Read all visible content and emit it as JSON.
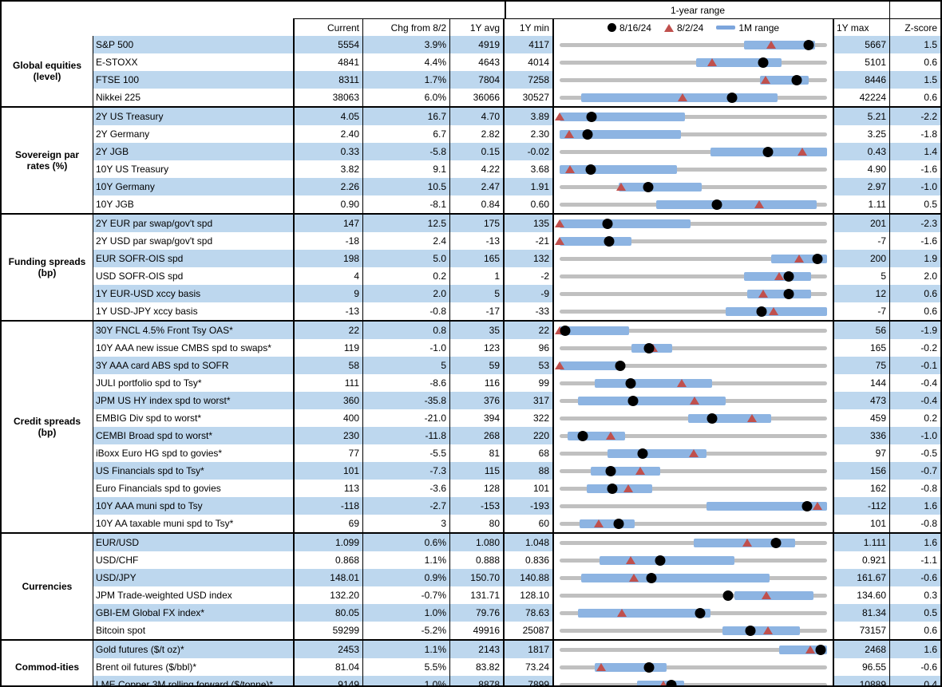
{
  "header": {
    "range_title": "1-year range",
    "col_current": "Current",
    "col_chg": "Chg from 8/2",
    "col_avg": "1Y avg",
    "col_min": "1Y min",
    "col_max": "1Y max",
    "col_z": "Z-score",
    "legend": [
      {
        "marker": "dot-icon",
        "label": "8/16/24"
      },
      {
        "marker": "triangle-icon",
        "label": "8/2/24"
      },
      {
        "marker": "bar-icon",
        "label": "1M range"
      }
    ]
  },
  "colors": {
    "stripe": "#BDD7EE",
    "range_bar": "#8DB4E2",
    "track": "#C0C0C0",
    "triangle": "#C0504D",
    "dot": "#000000"
  },
  "chart_data": {
    "type": "table",
    "description": "Market monitor: current levels vs 1-year range (dot = 8/16/24, triangle = 8/2/24, thick bar = 1M range); bar/dot/tri are fractions of the 1Y min-max span",
    "sections": [
      {
        "label": "Global equities (level)",
        "rows": [
          {
            "name": "S&P 500",
            "current": "5554",
            "chg": "3.9%",
            "avg": "4919",
            "min": "4117",
            "max": "5667",
            "z": "1.5",
            "bar": [
              0.69,
              0.955
            ],
            "dot": 0.93,
            "tri": 0.79
          },
          {
            "name": "E-STOXX",
            "current": "4841",
            "chg": "4.4%",
            "avg": "4643",
            "min": "4014",
            "max": "5101",
            "z": "0.6",
            "bar": [
              0.51,
              0.83
            ],
            "dot": 0.76,
            "tri": 0.57
          },
          {
            "name": "FTSE 100",
            "current": "8311",
            "chg": "1.7%",
            "avg": "7804",
            "min": "7258",
            "max": "8446",
            "z": "1.5",
            "bar": [
              0.75,
              0.93
            ],
            "dot": 0.886,
            "tri": 0.77
          },
          {
            "name": "Nikkei 225",
            "current": "38063",
            "chg": "6.0%",
            "avg": "36066",
            "min": "30527",
            "max": "42224",
            "z": "0.6",
            "bar": [
              0.08,
              0.815
            ],
            "dot": 0.645,
            "tri": 0.46
          }
        ]
      },
      {
        "label": "Sovereign par rates (%)",
        "rows": [
          {
            "name": "2Y US Treasury",
            "current": "4.05",
            "chg": "16.7",
            "avg": "4.70",
            "min": "3.89",
            "max": "5.21",
            "z": "-2.2",
            "bar": [
              0.0,
              0.47
            ],
            "dot": 0.12,
            "tri": 0.0
          },
          {
            "name": "2Y Germany",
            "current": "2.40",
            "chg": "6.7",
            "avg": "2.82",
            "min": "2.30",
            "max": "3.25",
            "z": "-1.8",
            "bar": [
              0.0,
              0.455
            ],
            "dot": 0.105,
            "tri": 0.035
          },
          {
            "name": "2Y JGB",
            "current": "0.33",
            "chg": "-5.8",
            "avg": "0.15",
            "min": "-0.02",
            "max": "0.43",
            "z": "1.4",
            "bar": [
              0.565,
              1.0
            ],
            "dot": 0.778,
            "tri": 0.907
          },
          {
            "name": "10Y US Treasury",
            "current": "3.82",
            "chg": "9.1",
            "avg": "4.22",
            "min": "3.68",
            "max": "4.90",
            "z": "-1.6",
            "bar": [
              0.0,
              0.44
            ],
            "dot": 0.115,
            "tri": 0.04
          },
          {
            "name": "10Y Germany",
            "current": "2.26",
            "chg": "10.5",
            "avg": "2.47",
            "min": "1.91",
            "max": "2.97",
            "z": "-1.0",
            "bar": [
              0.22,
              0.53
            ],
            "dot": 0.33,
            "tri": 0.23
          },
          {
            "name": "10Y JGB",
            "current": "0.90",
            "chg": "-8.1",
            "avg": "0.84",
            "min": "0.60",
            "max": "1.11",
            "z": "0.5",
            "bar": [
              0.36,
              0.96
            ],
            "dot": 0.588,
            "tri": 0.747
          }
        ]
      },
      {
        "label": "Funding spreads (bp)",
        "rows": [
          {
            "name": "2Y EUR par swap/gov't spd",
            "current": "147",
            "chg": "12.5",
            "avg": "175",
            "min": "135",
            "max": "201",
            "z": "-2.3",
            "bar": [
              0.0,
              0.49
            ],
            "dot": 0.18,
            "tri": 0.0
          },
          {
            "name": "2Y USD par swap/gov't spd",
            "current": "-18",
            "chg": "2.4",
            "avg": "-13",
            "min": "-21",
            "max": "-7",
            "z": "-1.6",
            "bar": [
              0.0,
              0.27
            ],
            "dot": 0.185,
            "tri": 0.0
          },
          {
            "name": "EUR SOFR-OIS spd",
            "current": "198",
            "chg": "5.0",
            "avg": "165",
            "min": "132",
            "max": "200",
            "z": "1.9",
            "bar": [
              0.79,
              1.0
            ],
            "dot": 0.965,
            "tri": 0.897
          },
          {
            "name": "USD SOFR-OIS spd",
            "current": "4",
            "chg": "0.2",
            "avg": "1",
            "min": "-2",
            "max": "5",
            "z": "2.0",
            "bar": [
              0.69,
              0.94
            ],
            "dot": 0.857,
            "tri": 0.82
          },
          {
            "name": "1Y EUR-USD xccy basis",
            "current": "9",
            "chg": "2.0",
            "avg": "5",
            "min": "-9",
            "max": "12",
            "z": "0.6",
            "bar": [
              0.7,
              0.94
            ],
            "dot": 0.857,
            "tri": 0.76
          },
          {
            "name": "1Y USD-JPY xccy basis",
            "current": "-13",
            "chg": "-0.8",
            "avg": "-17",
            "min": "-33",
            "max": "-7",
            "z": "0.6",
            "bar": [
              0.62,
              1.0
            ],
            "dot": 0.755,
            "tri": 0.8
          }
        ]
      },
      {
        "label": "Credit spreads (bp)",
        "rows": [
          {
            "name": "30Y FNCL 4.5% Front Tsy OAS*",
            "current": "22",
            "chg": "0.8",
            "avg": "35",
            "min": "22",
            "max": "56",
            "z": "-1.9",
            "bar": [
              0.0,
              0.26
            ],
            "dot": 0.02,
            "tri": 0.0
          },
          {
            "name": "10Y AAA new issue CMBS spd to swaps*",
            "current": "119",
            "chg": "-1.0",
            "avg": "123",
            "min": "96",
            "max": "165",
            "z": "-0.2",
            "bar": [
              0.27,
              0.42
            ],
            "dot": 0.333,
            "tri": 0.35
          },
          {
            "name": "3Y AAA card ABS spd to SOFR",
            "current": "58",
            "chg": "5",
            "avg": "59",
            "min": "53",
            "max": "75",
            "z": "-0.1",
            "bar": [
              0.0,
              0.225
            ],
            "dot": 0.227,
            "tri": 0.0
          },
          {
            "name": "JULI portfolio spd to Tsy*",
            "current": "111",
            "chg": "-8.6",
            "avg": "116",
            "min": "99",
            "max": "144",
            "z": "-0.4",
            "bar": [
              0.13,
              0.57
            ],
            "dot": 0.267,
            "tri": 0.458
          },
          {
            "name": "JPM US HY index spd to worst*",
            "current": "360",
            "chg": "-35.8",
            "avg": "376",
            "min": "317",
            "max": "473",
            "z": "-0.4",
            "bar": [
              0.07,
              0.62
            ],
            "dot": 0.276,
            "tri": 0.505
          },
          {
            "name": "EMBIG Div spd to worst*",
            "current": "400",
            "chg": "-21.0",
            "avg": "394",
            "min": "322",
            "max": "459",
            "z": "0.2",
            "bar": [
              0.48,
              0.79
            ],
            "dot": 0.57,
            "tri": 0.72
          },
          {
            "name": "CEMBI Broad spd to worst*",
            "current": "230",
            "chg": "-11.8",
            "avg": "268",
            "min": "220",
            "max": "336",
            "z": "-1.0",
            "bar": [
              0.03,
              0.245
            ],
            "dot": 0.086,
            "tri": 0.19
          },
          {
            "name": "iBoxx Euro HG spd to govies*",
            "current": "77",
            "chg": "-5.5",
            "avg": "81",
            "min": "68",
            "max": "97",
            "z": "-0.5",
            "bar": [
              0.18,
              0.55
            ],
            "dot": 0.31,
            "tri": 0.5
          },
          {
            "name": "US Financials spd to Tsy*",
            "current": "101",
            "chg": "-7.3",
            "avg": "115",
            "min": "88",
            "max": "156",
            "z": "-0.7",
            "bar": [
              0.115,
              0.375
            ],
            "dot": 0.19,
            "tri": 0.3
          },
          {
            "name": "Euro Financials spd to govies",
            "current": "113",
            "chg": "-3.6",
            "avg": "128",
            "min": "101",
            "max": "162",
            "z": "-0.8",
            "bar": [
              0.1,
              0.345
            ],
            "dot": 0.197,
            "tri": 0.256
          },
          {
            "name": "10Y AAA muni spd to Tsy",
            "current": "-118",
            "chg": "-2.7",
            "avg": "-153",
            "min": "-193",
            "max": "-112",
            "z": "1.6",
            "bar": [
              0.55,
              1.0
            ],
            "dot": 0.926,
            "tri": 0.965
          },
          {
            "name": "10Y AA taxable muni spd to Tsy*",
            "current": "69",
            "chg": "3",
            "avg": "80",
            "min": "60",
            "max": "101",
            "z": "-0.8",
            "bar": [
              0.075,
              0.28
            ],
            "dot": 0.22,
            "tri": 0.146
          }
        ]
      },
      {
        "label": "Currencies",
        "rows": [
          {
            "name": "EUR/USD",
            "current": "1.099",
            "chg": "0.6%",
            "avg": "1.080",
            "min": "1.048",
            "max": "1.111",
            "z": "1.6",
            "bar": [
              0.5,
              0.88
            ],
            "dot": 0.81,
            "tri": 0.7
          },
          {
            "name": "USD/CHF",
            "current": "0.868",
            "chg": "1.1%",
            "avg": "0.888",
            "min": "0.836",
            "max": "0.921",
            "z": "-1.1",
            "bar": [
              0.15,
              0.655
            ],
            "dot": 0.376,
            "tri": 0.266
          },
          {
            "name": "USD/JPY",
            "current": "148.01",
            "chg": "0.9%",
            "avg": "150.70",
            "min": "140.88",
            "max": "161.67",
            "z": "-0.6",
            "bar": [
              0.08,
              0.785
            ],
            "dot": 0.343,
            "tri": 0.279
          },
          {
            "name": "JPM Trade-weighted USD index",
            "current": "132.20",
            "chg": "-0.7%",
            "avg": "131.71",
            "min": "128.10",
            "max": "134.60",
            "z": "0.3",
            "bar": [
              0.655,
              0.95
            ],
            "dot": 0.63,
            "tri": 0.774
          },
          {
            "name": "GBI-EM Global FX index*",
            "current": "80.05",
            "chg": "1.0%",
            "avg": "79.76",
            "min": "78.63",
            "max": "81.34",
            "z": "0.5",
            "bar": [
              0.07,
              0.565
            ],
            "dot": 0.524,
            "tri": 0.232
          },
          {
            "name": "Bitcoin spot",
            "current": "59299",
            "chg": "-5.2%",
            "avg": "49916",
            "min": "25087",
            "max": "73157",
            "z": "0.6",
            "bar": [
              0.61,
              0.9
            ],
            "dot": 0.712,
            "tri": 0.779
          }
        ]
      },
      {
        "label": "Commod-ities",
        "rows": [
          {
            "name": "Gold futures ($/t oz)*",
            "current": "2453",
            "chg": "1.1%",
            "avg": "2143",
            "min": "1817",
            "max": "2468",
            "z": "1.6",
            "bar": [
              0.82,
              1.0
            ],
            "dot": 0.975,
            "tri": 0.936
          },
          {
            "name": "Brent oil futures ($/bbl)*",
            "current": "81.04",
            "chg": "5.5%",
            "avg": "83.82",
            "min": "73.24",
            "max": "96.55",
            "z": "-0.6",
            "bar": [
              0.13,
              0.4
            ],
            "dot": 0.335,
            "tri": 0.155
          },
          {
            "name": "LME Copper 3M rolling forward ($/tonne)*",
            "current": "9149",
            "chg": "1.0%",
            "avg": "8878",
            "min": "7899",
            "max": "10889",
            "z": "0.4",
            "bar": [
              0.29,
              0.465
            ],
            "dot": 0.418,
            "tri": 0.388
          }
        ]
      }
    ]
  }
}
